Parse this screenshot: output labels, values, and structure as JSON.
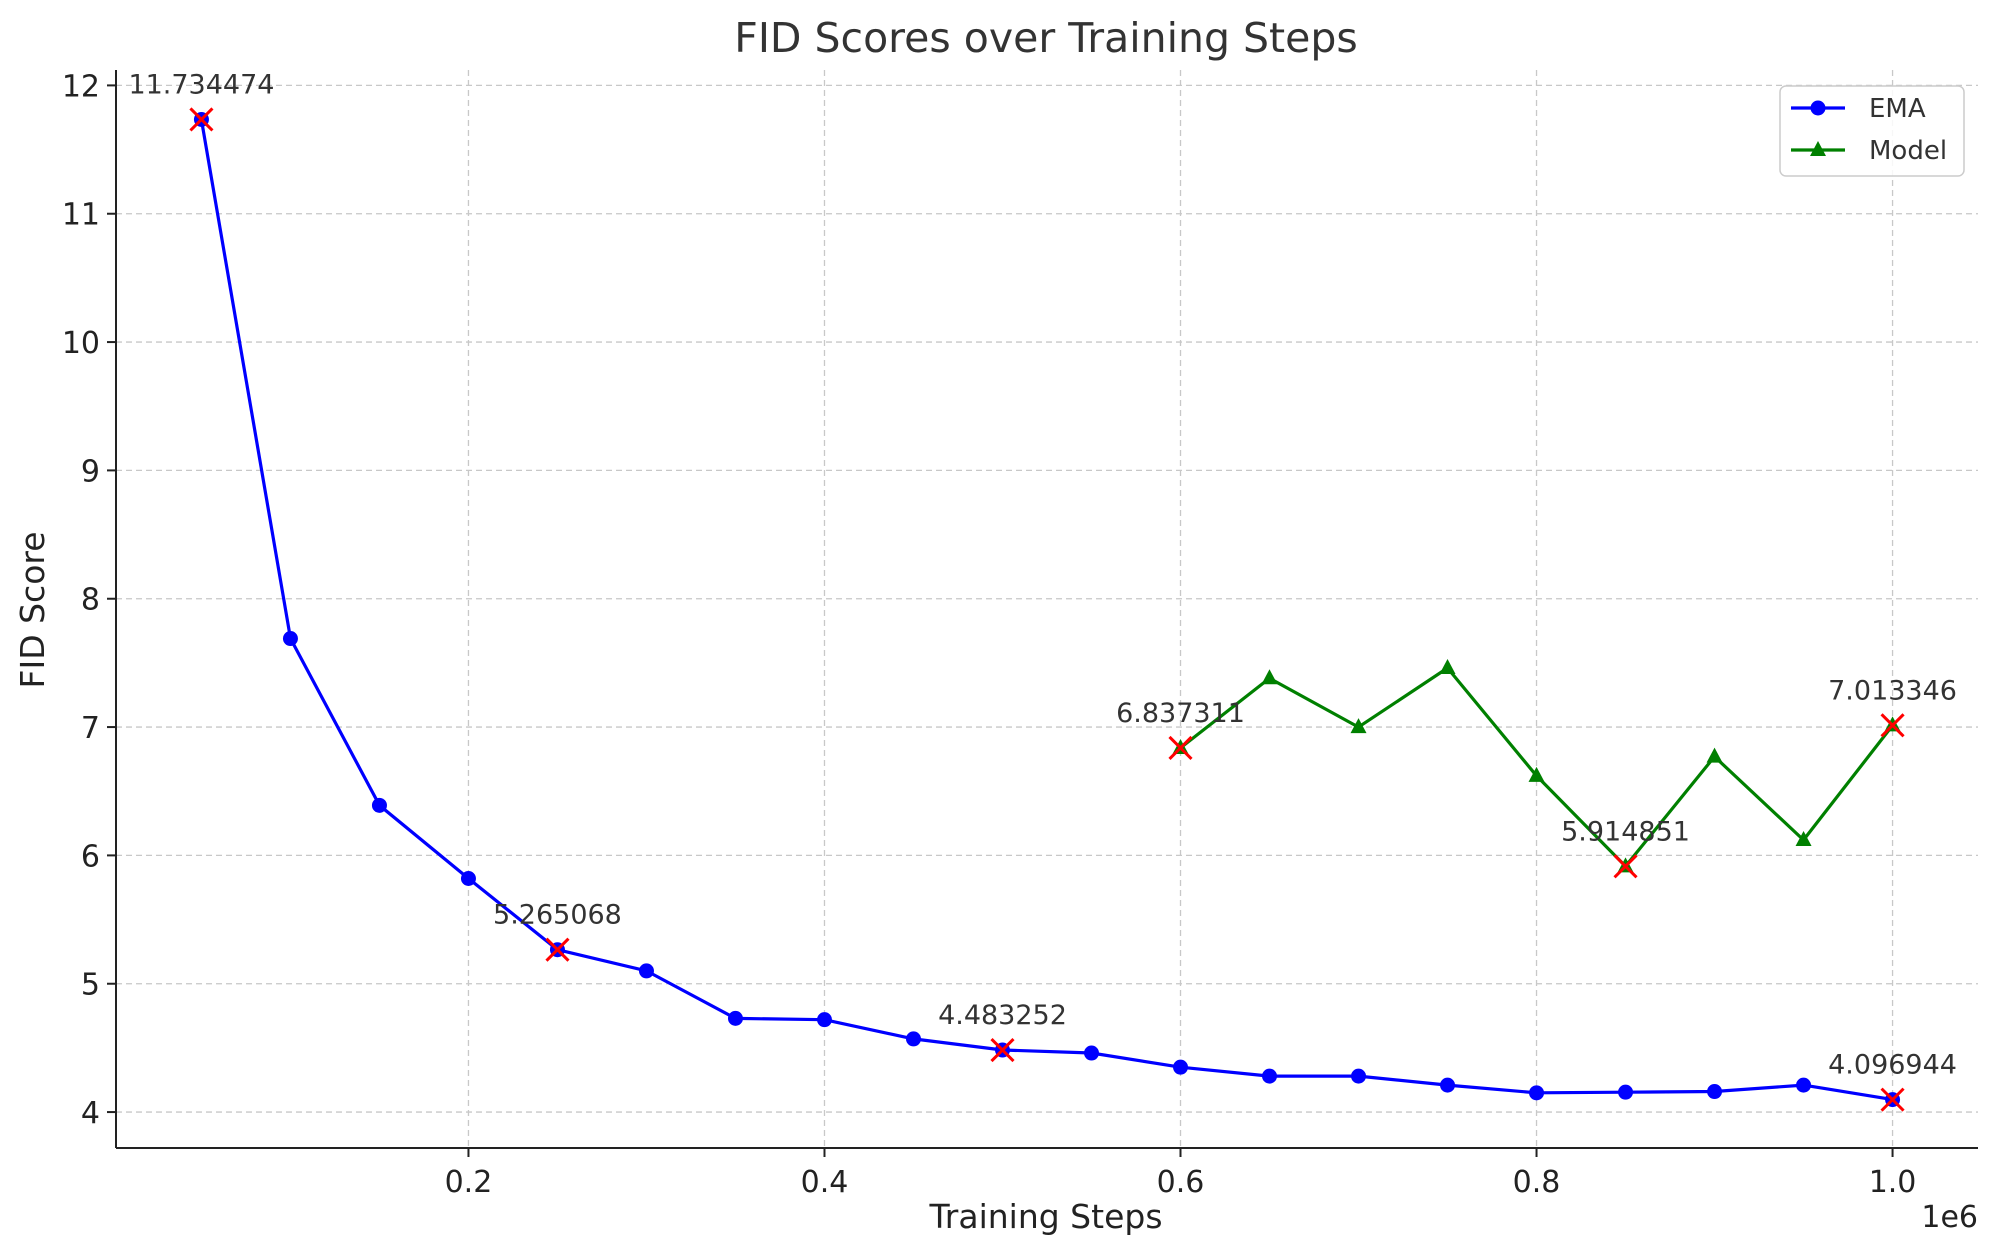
{
  "chart_data": {
    "type": "line",
    "title": "FID Scores over Training Steps",
    "xlabel": "Training Steps",
    "ylabel": "FID Score",
    "x_offset_label": "1e6",
    "xlim": [
      2000,
      1048000
    ],
    "ylim": [
      3.72,
      12.12
    ],
    "x_ticks": [
      200000,
      400000,
      600000,
      800000,
      1000000
    ],
    "x_tick_labels": [
      "0.2",
      "0.4",
      "0.6",
      "0.8",
      "1.0"
    ],
    "y_ticks": [
      4,
      5,
      6,
      7,
      8,
      9,
      10,
      11,
      12
    ],
    "y_tick_labels": [
      "4",
      "5",
      "6",
      "7",
      "8",
      "9",
      "10",
      "11",
      "12"
    ],
    "grid": true,
    "legend_position": "top-right",
    "series": [
      {
        "name": "EMA",
        "color": "#0000ff",
        "marker": "circle",
        "x": [
          50000,
          100000,
          150000,
          200000,
          250000,
          300000,
          350000,
          400000,
          450000,
          500000,
          550000,
          600000,
          650000,
          700000,
          750000,
          800000,
          850000,
          900000,
          950000,
          1000000
        ],
        "y": [
          11.734474,
          7.69,
          6.39,
          5.82,
          5.265068,
          5.1,
          4.73,
          4.72,
          4.57,
          4.483252,
          4.46,
          4.35,
          4.28,
          4.28,
          4.21,
          4.15,
          4.155,
          4.16,
          4.21,
          4.096944
        ]
      },
      {
        "name": "Model",
        "color": "#008000",
        "marker": "triangle",
        "x": [
          600000,
          650000,
          700000,
          750000,
          800000,
          850000,
          900000,
          950000,
          1000000
        ],
        "y": [
          6.837311,
          7.38,
          7.0,
          7.46,
          6.62,
          5.914851,
          6.77,
          6.12,
          7.013346
        ]
      }
    ],
    "annotations": [
      {
        "x": 50000,
        "y": 11.734474,
        "text": "11.734474"
      },
      {
        "x": 250000,
        "y": 5.265068,
        "text": "5.265068"
      },
      {
        "x": 500000,
        "y": 4.483252,
        "text": "4.483252"
      },
      {
        "x": 1000000,
        "y": 4.096944,
        "text": "4.096944"
      },
      {
        "x": 600000,
        "y": 6.837311,
        "text": "6.837311"
      },
      {
        "x": 850000,
        "y": 5.914851,
        "text": "5.914851"
      },
      {
        "x": 1000000,
        "y": 7.013346,
        "text": "7.013346"
      }
    ],
    "highlight_marker": {
      "shape": "x",
      "color": "#ff0000"
    }
  }
}
